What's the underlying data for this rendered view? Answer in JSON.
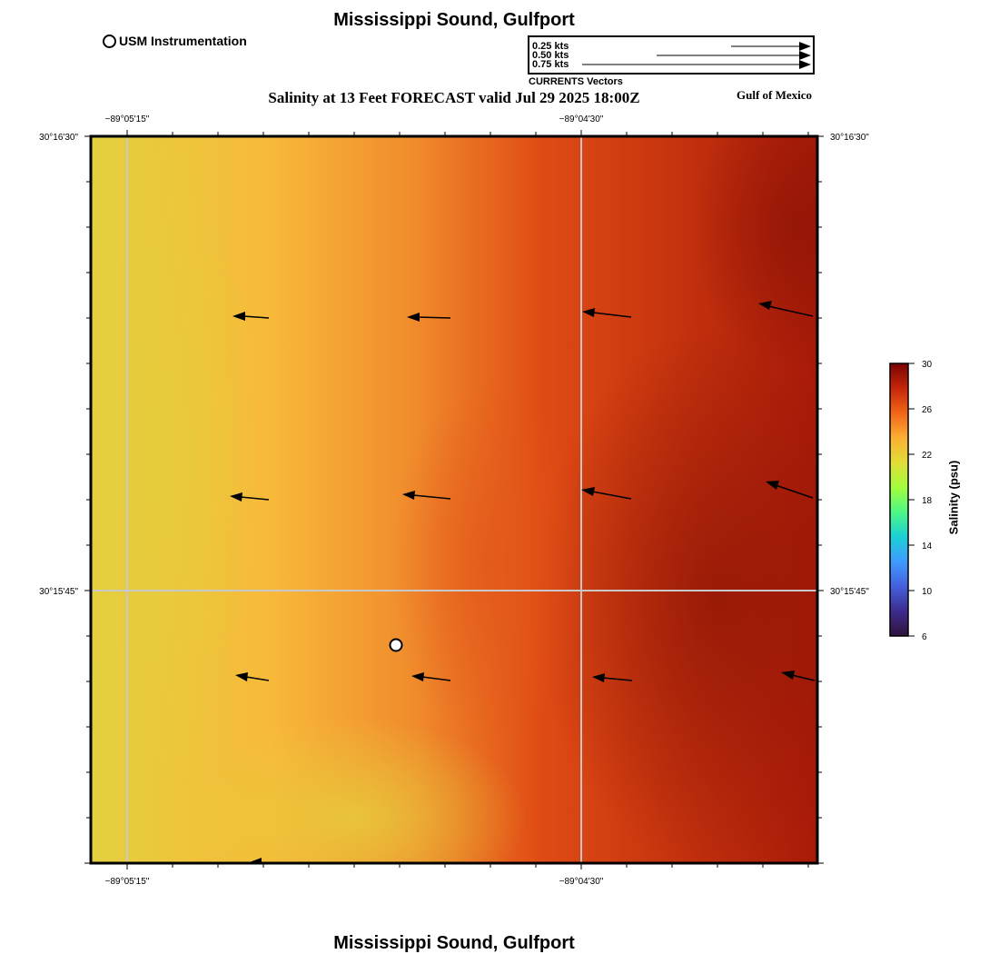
{
  "title_top": "Mississippi Sound, Gulfport",
  "title_bottom": "Mississippi Sound, Gulfport",
  "subtitle": "Salinity at 13 Feet FORECAST valid Jul 29 2025 18:00Z",
  "region_label": "Gulf of Mexico",
  "legend": {
    "instrumentation_label": "USM Instrumentation",
    "vector_caption": "CURRENTS Vectors",
    "vector_scale": [
      "0.25 kts",
      "0.50 kts",
      "0.75 kts"
    ]
  },
  "axes": {
    "lon_labels": [
      "−89°05'15\"",
      "−89°04'30\""
    ],
    "lat_labels": [
      "30°16'30\"",
      "30°15'45\""
    ]
  },
  "colorbar": {
    "label": "Salinity (psu)",
    "ticks": [
      "30",
      "26",
      "22",
      "18",
      "14",
      "10",
      "6"
    ],
    "colors": [
      "#7a0403",
      "#c5250a",
      "#f26518",
      "#fbaf32",
      "#e1dd37",
      "#a2fc3c",
      "#4df884",
      "#1bd0d5",
      "#3e9bfe",
      "#4560dd",
      "#3d2c8e",
      "#30123b"
    ]
  },
  "map_colors": {
    "west": "#e3d13f",
    "mid_west": "#f8b93a",
    "middle": "#f08a2c",
    "mid_east": "#e04b14",
    "east": "#a81a08"
  }
}
